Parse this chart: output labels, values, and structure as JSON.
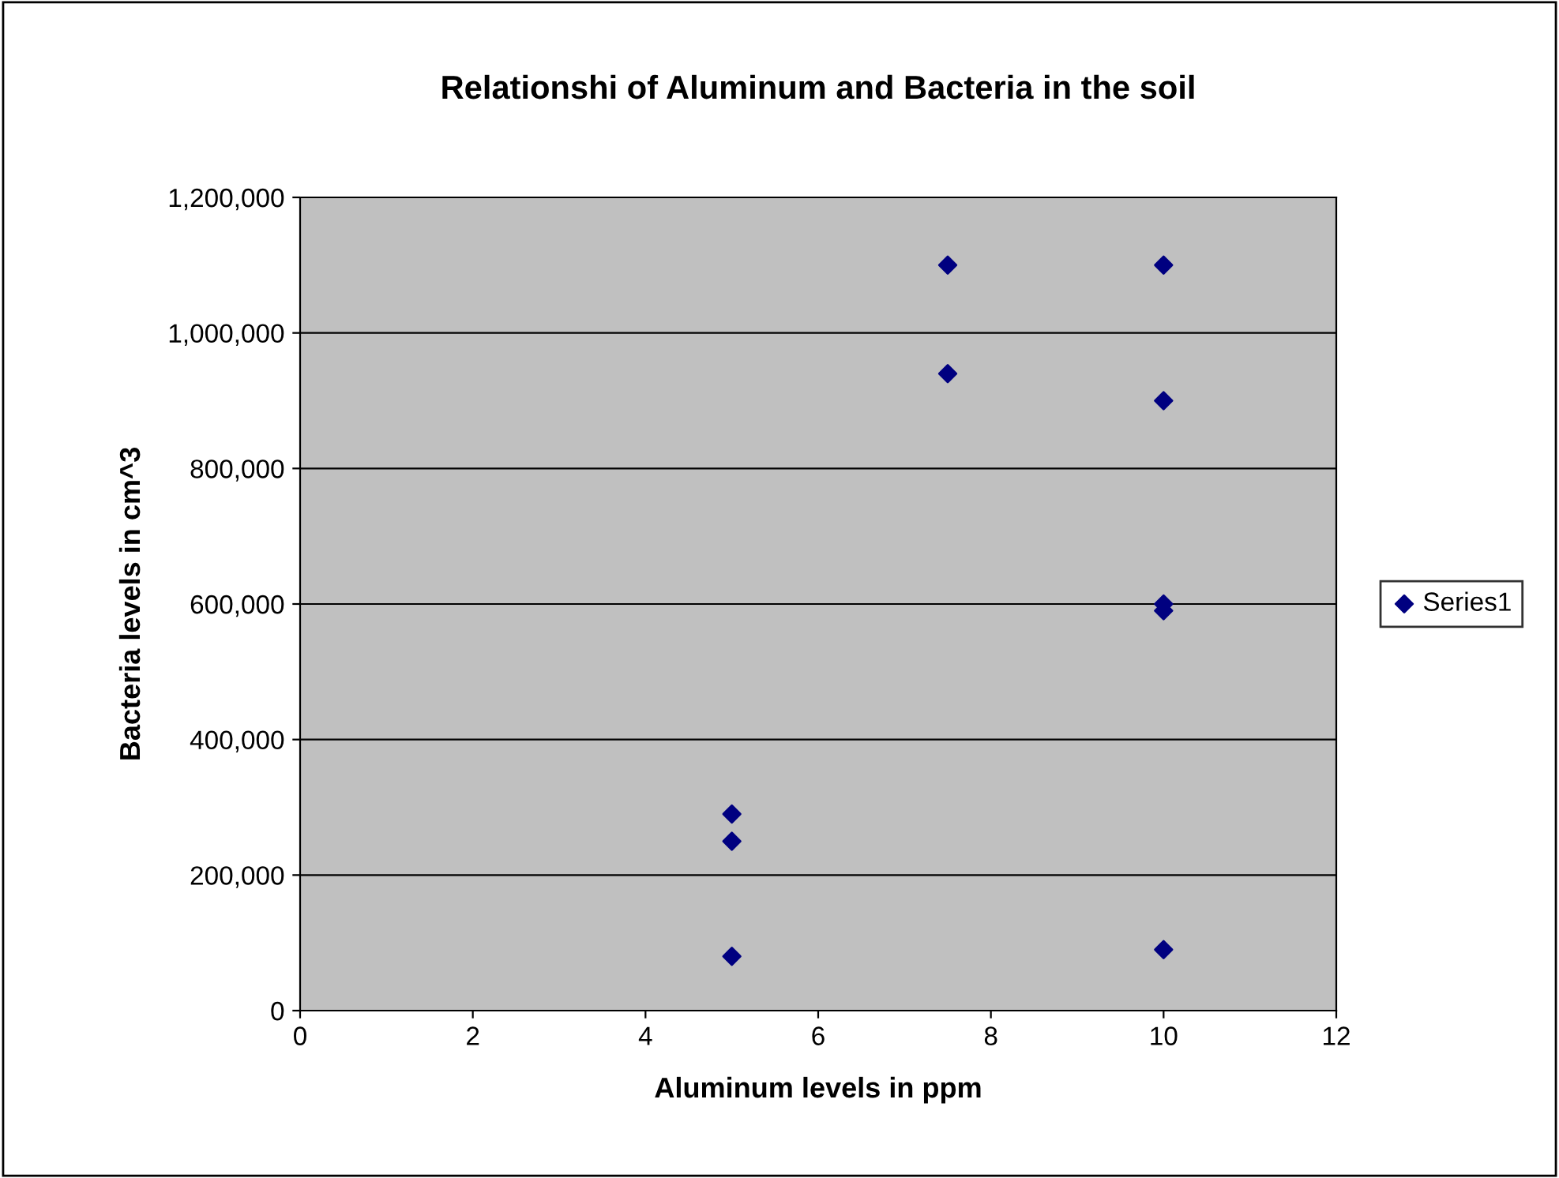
{
  "chart_data": {
    "type": "scatter",
    "title": "Relationshi of Aluminum and Bacteria in the soil",
    "xlabel": "Aluminum levels in ppm",
    "ylabel": "Bacteria levels in cm^3",
    "series": [
      {
        "name": "Series1",
        "color": "#000080",
        "x": [
          5,
          5,
          5,
          7.5,
          7.5,
          10,
          10,
          10,
          10,
          10
        ],
        "values": [
          290000,
          250000,
          80000,
          1100000,
          940000,
          1100000,
          900000,
          600000,
          590000,
          90000
        ]
      }
    ],
    "xlim": [
      0,
      12
    ],
    "xticks": [
      0,
      2,
      4,
      6,
      8,
      10,
      12
    ],
    "ylim": [
      0,
      1200000
    ],
    "yticks": [
      {
        "value": 0,
        "label": "0"
      },
      {
        "value": 200000,
        "label": "200,000"
      },
      {
        "value": 400000,
        "label": "400,000"
      },
      {
        "value": 600000,
        "label": "600,000"
      },
      {
        "value": 800000,
        "label": "800,000"
      },
      {
        "value": 1000000,
        "label": "1,000,000"
      },
      {
        "value": 1200000,
        "label": "1,200,000"
      }
    ],
    "grid": "y",
    "legend": "right",
    "marker": "diamond"
  }
}
